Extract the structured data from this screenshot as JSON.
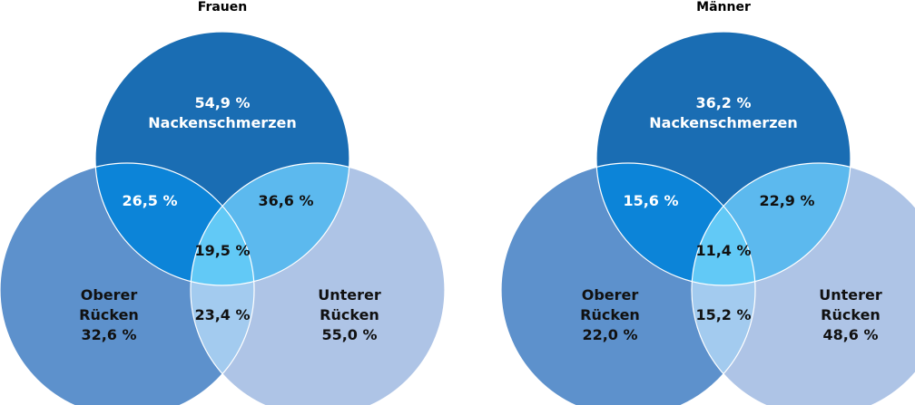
{
  "chart_data": [
    {
      "type": "venn",
      "title": "Frauen",
      "sets": [
        "Nackenschmerzen",
        "Oberer Rücken",
        "Unterer Rücken"
      ],
      "regions": [
        "A",
        "B",
        "C",
        "AB",
        "AC",
        "BC",
        "ABC"
      ],
      "values": [
        54.9,
        32.6,
        55.0,
        26.5,
        36.6,
        23.4,
        19.5
      ],
      "value_labels": [
        "54,9 %",
        "32,6 %",
        "55,0 %",
        "26,5 %",
        "36,6 %",
        "23,4 %",
        "19,5 %"
      ],
      "colors": [
        "#1a6db3",
        "#5d91cc",
        "#aec4e6",
        "#0c84d8",
        "#5cb9ee",
        "#a3cbef",
        "#62c9f6"
      ]
    },
    {
      "type": "venn",
      "title": "Männer",
      "sets": [
        "Nackenschmerzen",
        "Oberer Rücken",
        "Unterer Rücken"
      ],
      "regions": [
        "A",
        "B",
        "C",
        "AB",
        "AC",
        "BC",
        "ABC"
      ],
      "values": [
        36.2,
        22.0,
        48.6,
        15.6,
        22.9,
        15.2,
        11.4
      ],
      "value_labels": [
        "36,2 %",
        "22,0 %",
        "48,6 %",
        "15,6 %",
        "22,9 %",
        "15,2 %",
        "11,4 %"
      ],
      "colors": [
        "#1a6db3",
        "#5d91cc",
        "#aec4e6",
        "#0c84d8",
        "#5cb9ee",
        "#a3cbef",
        "#62c9f6"
      ]
    }
  ]
}
